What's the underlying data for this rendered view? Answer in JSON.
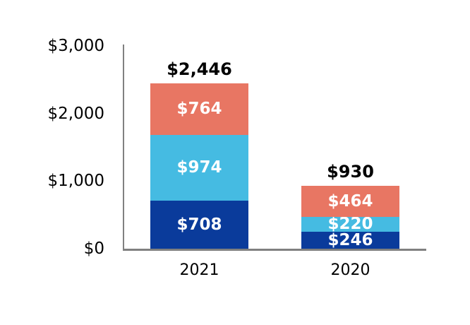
{
  "chart_data": {
    "type": "bar",
    "subtype": "stacked-vertical",
    "title": "",
    "xlabel": "",
    "ylabel": "",
    "categories": [
      "2021",
      "2020"
    ],
    "series": [
      {
        "name": "dark-blue-bottom-segment",
        "color_key": "dark_blue",
        "values": [
          708,
          246
        ],
        "labels": [
          "$708",
          "$246"
        ]
      },
      {
        "name": "light-blue-middle-segment",
        "color_key": "light_blue",
        "values": [
          974,
          220
        ],
        "labels": [
          "$974",
          "$220"
        ]
      },
      {
        "name": "coral-top-segment",
        "color_key": "coral",
        "values": [
          764,
          464
        ],
        "labels": [
          "$764",
          "$464"
        ]
      }
    ],
    "totals": {
      "values": [
        2446,
        930
      ],
      "labels": [
        "$2,446",
        "$930"
      ]
    },
    "yticks": [
      {
        "value": 0,
        "label": "$0"
      },
      {
        "value": 1000,
        "label": "$1,000"
      },
      {
        "value": 2000,
        "label": "$2,000"
      },
      {
        "value": 3000,
        "label": "$3,000"
      }
    ],
    "ylim": [
      0,
      3000
    ],
    "grid": false,
    "legend": "none",
    "colors": {
      "dark_blue": "#0A3B9B",
      "light_blue": "#45BBE2",
      "coral": "#E87663",
      "axis": "#808080",
      "total_label": "#000000",
      "segment_label": "#FFFFFF",
      "background": "#FFFFFF"
    }
  }
}
